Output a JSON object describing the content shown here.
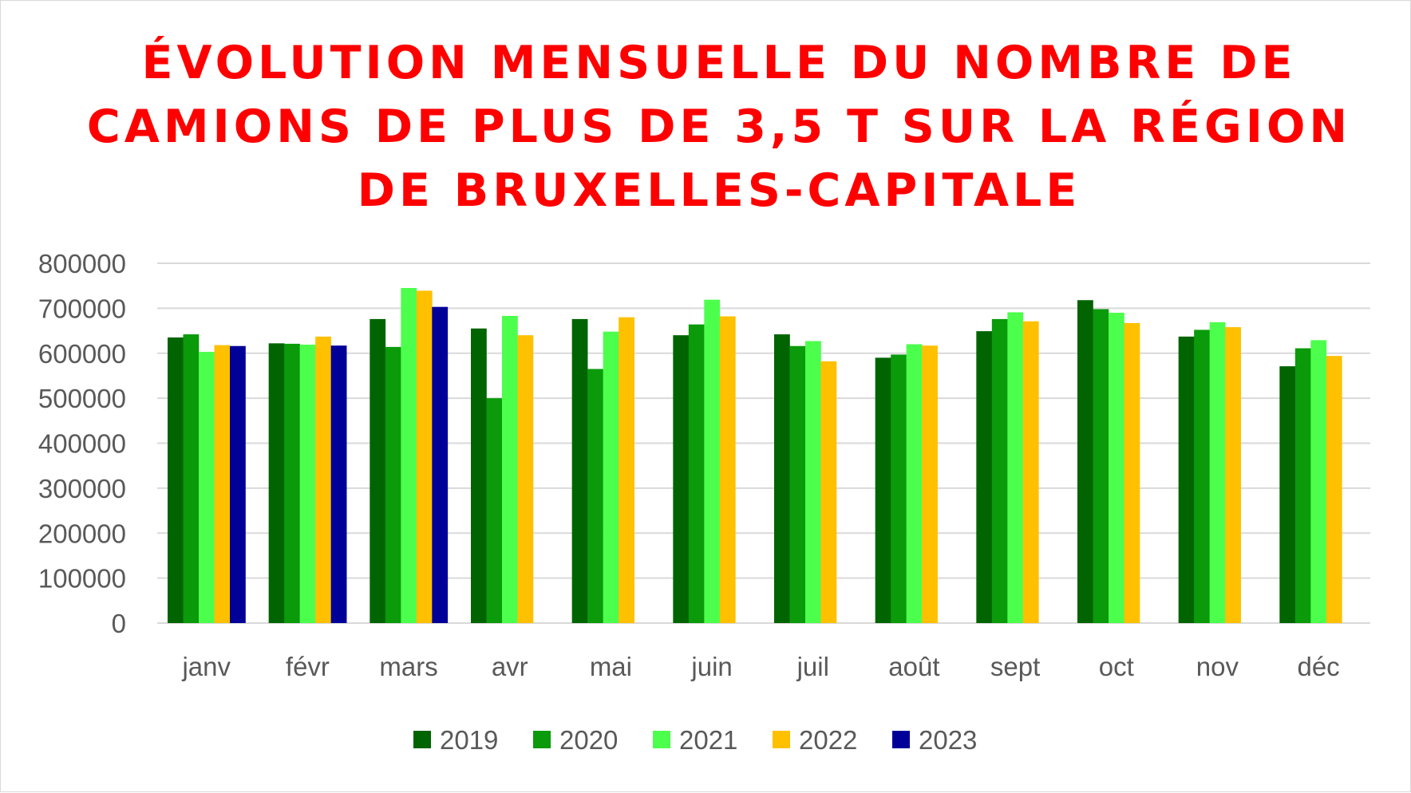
{
  "chart_data": {
    "type": "bar",
    "title": "ÉVOLUTION MENSUELLE DU NOMBRE DE CAMIONS DE PLUS DE 3,5 T SUR LA RÉGION DE BRUXELLES-CAPITALE",
    "title_lines": [
      "ÉVOLUTION MENSUELLE DU NOMBRE DE",
      "CAMIONS DE PLUS DE 3,5 T SUR LA RÉGION",
      "DE BRUXELLES-CAPITALE"
    ],
    "title_color": "#ff0000",
    "xlabel": "",
    "ylabel": "",
    "ylim": [
      0,
      800000
    ],
    "yticks": [
      "0",
      "100000",
      "200000",
      "300000",
      "400000",
      "500000",
      "600000",
      "700000",
      "800000"
    ],
    "grid": true,
    "legend_position": "bottom",
    "categories": [
      "janv",
      "févr",
      "mars",
      "avr",
      "mai",
      "juin",
      "juil",
      "août",
      "sept",
      "oct",
      "nov",
      "déc"
    ],
    "series": [
      {
        "name": "2019",
        "color": "#006400",
        "values": [
          635000,
          622000,
          676000,
          655000,
          676000,
          640000,
          642000,
          590000,
          649000,
          718000,
          637000,
          571000
        ]
      },
      {
        "name": "2020",
        "color": "#0a9a0a",
        "values": [
          642000,
          621000,
          614000,
          500000,
          565000,
          664000,
          616000,
          597000,
          676000,
          698000,
          652000,
          611000
        ]
      },
      {
        "name": "2021",
        "color": "#4cff4c",
        "values": [
          603000,
          619000,
          745000,
          683000,
          648000,
          719000,
          627000,
          620000,
          691000,
          690000,
          669000,
          629000
        ]
      },
      {
        "name": "2022",
        "color": "#ffc000",
        "values": [
          618000,
          637000,
          739000,
          640000,
          680000,
          682000,
          582000,
          617000,
          671000,
          667000,
          658000,
          594000
        ]
      },
      {
        "name": "2023",
        "color": "#000099",
        "values": [
          616000,
          617000,
          703000,
          null,
          null,
          null,
          null,
          null,
          null,
          null,
          null,
          null
        ]
      }
    ]
  }
}
